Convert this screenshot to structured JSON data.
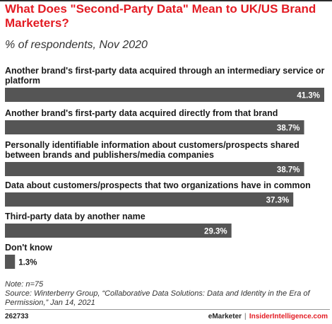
{
  "title": "What Does \"Second-Party Data\" Mean to UK/US Brand Marketers?",
  "subtitle": "% of respondents, Nov 2020",
  "chart_data": {
    "type": "bar",
    "orientation": "horizontal",
    "categories": [
      "Another brand's first-party data acquired through an intermediary service or platform",
      "Another brand's first-party data acquired directly from that brand",
      "Personally identifiable information about customers/prospects shared between brands and publishers/media companies",
      "Data about customers/prospects that two organizations have in common",
      "Third-party data by another name",
      "Don't know"
    ],
    "values": [
      41.3,
      38.7,
      38.7,
      37.3,
      29.3,
      1.3
    ],
    "value_labels": [
      "41.3%",
      "38.7%",
      "38.7%",
      "37.3%",
      "29.3%",
      "1.3%"
    ],
    "xlim": [
      0,
      41.3
    ],
    "bar_color": "#555555",
    "label_color_inside": "#ffffff",
    "label_color_outside": "#1a1a1a",
    "grid": false,
    "legend": "none"
  },
  "footer": {
    "note": "Note: n=75",
    "source": "Source: Winterberry Group, “Collaborative Data Solutions: Data and Identity in the Era of Permission,” Jan 14, 2021",
    "chart_id": "262733",
    "brand": "eMarketer",
    "separator": "|",
    "brand2": "InsiderIntelligence.com"
  },
  "colors": {
    "accent": "#e31b23",
    "bar": "#555555"
  }
}
